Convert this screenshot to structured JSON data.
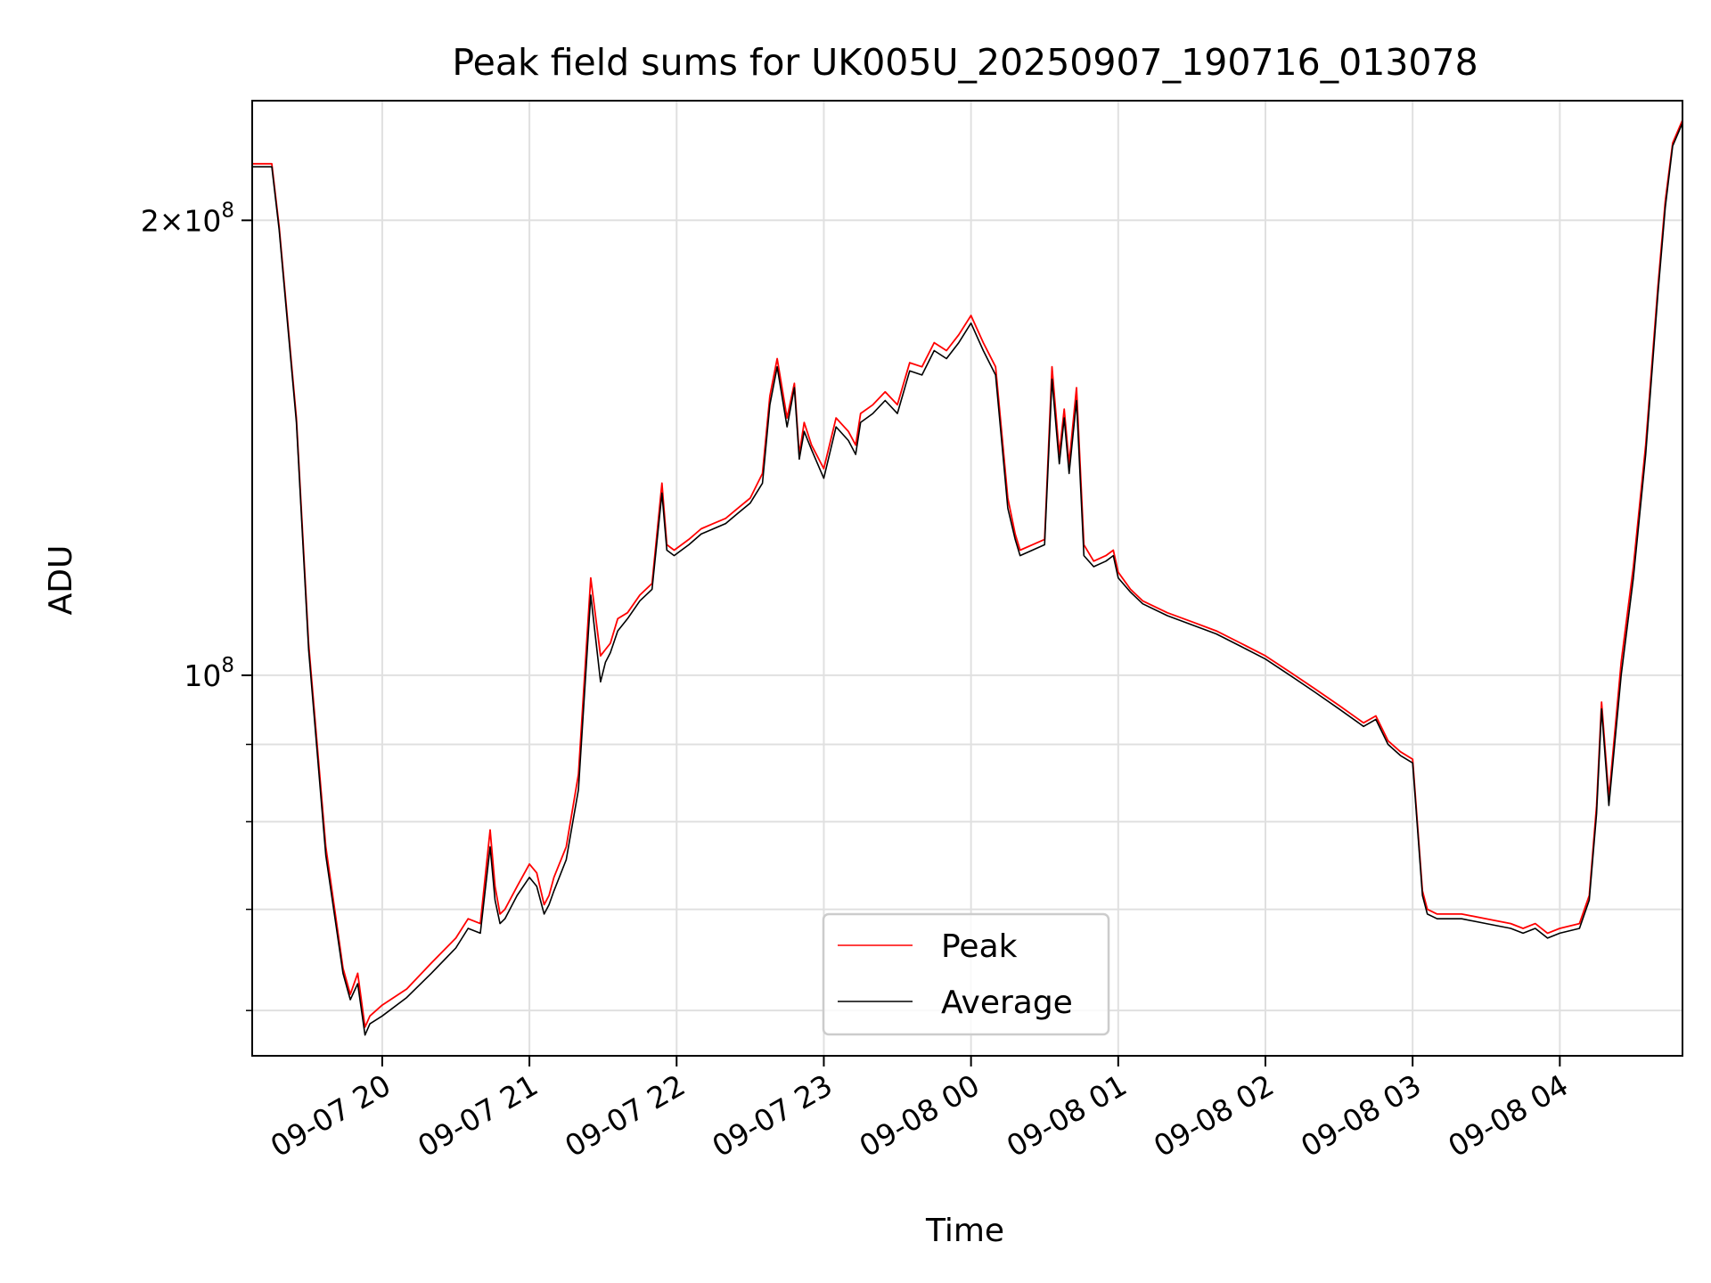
{
  "chart_data": {
    "type": "line",
    "title": "Peak field sums for UK005U_20250907_190716_013078",
    "xlabel": "Time",
    "ylabel": "ADU",
    "yscale": "log",
    "grid": true,
    "legend_position": "lower-center",
    "x_ticks": [
      "09-07 20",
      "09-07 21",
      "09-07 22",
      "09-07 23",
      "09-08 00",
      "09-08 01",
      "09-08 02",
      "09-08 03",
      "09-08 04"
    ],
    "y_ticks": [
      {
        "value": 100000000,
        "mantissa": "",
        "exp": "8"
      },
      {
        "value": 200000000,
        "mantissa": "2",
        "exp": "8"
      }
    ],
    "y_minor_ticks": [
      60000000,
      70000000,
      80000000,
      90000000
    ],
    "xlim": [
      "2025-09-07 19:07",
      "2025-09-08 04:50"
    ],
    "ylim": [
      56000000,
      240000000
    ],
    "series": [
      {
        "name": "Peak",
        "color": "#ff0000",
        "x": [
          "2025-09-07 19:07",
          "2025-09-07 19:15",
          "2025-09-07 19:18",
          "2025-09-07 19:25",
          "2025-09-07 19:30",
          "2025-09-07 19:37",
          "2025-09-07 19:44",
          "2025-09-07 19:47",
          "2025-09-07 19:50",
          "2025-09-07 19:53",
          "2025-09-07 19:55",
          "2025-09-07 20:00",
          "2025-09-07 20:10",
          "2025-09-07 20:20",
          "2025-09-07 20:30",
          "2025-09-07 20:35",
          "2025-09-07 20:40",
          "2025-09-07 20:44",
          "2025-09-07 20:46",
          "2025-09-07 20:48",
          "2025-09-07 20:50",
          "2025-09-07 20:55",
          "2025-09-07 21:00",
          "2025-09-07 21:03",
          "2025-09-07 21:06",
          "2025-09-07 21:08",
          "2025-09-07 21:10",
          "2025-09-07 21:15",
          "2025-09-07 21:20",
          "2025-09-07 21:25",
          "2025-09-07 21:29",
          "2025-09-07 21:31",
          "2025-09-07 21:33",
          "2025-09-07 21:36",
          "2025-09-07 21:40",
          "2025-09-07 21:45",
          "2025-09-07 21:50",
          "2025-09-07 21:54",
          "2025-09-07 21:56",
          "2025-09-07 21:59",
          "2025-09-07 22:05",
          "2025-09-07 22:10",
          "2025-09-07 22:15",
          "2025-09-07 22:20",
          "2025-09-07 22:25",
          "2025-09-07 22:30",
          "2025-09-07 22:35",
          "2025-09-07 22:38",
          "2025-09-07 22:41",
          "2025-09-07 22:45",
          "2025-09-07 22:48",
          "2025-09-07 22:50",
          "2025-09-07 22:52",
          "2025-09-07 22:55",
          "2025-09-07 23:00",
          "2025-09-07 23:05",
          "2025-09-07 23:10",
          "2025-09-07 23:13",
          "2025-09-07 23:15",
          "2025-09-07 23:20",
          "2025-09-07 23:25",
          "2025-09-07 23:30",
          "2025-09-07 23:35",
          "2025-09-07 23:40",
          "2025-09-07 23:45",
          "2025-09-07 23:50",
          "2025-09-07 23:55",
          "2025-09-08 00:00",
          "2025-09-08 00:05",
          "2025-09-08 00:10",
          "2025-09-08 00:13",
          "2025-09-08 00:15",
          "2025-09-08 00:18",
          "2025-09-08 00:20",
          "2025-09-08 00:25",
          "2025-09-08 00:30",
          "2025-09-08 00:33",
          "2025-09-08 00:36",
          "2025-09-08 00:38",
          "2025-09-08 00:40",
          "2025-09-08 00:43",
          "2025-09-08 00:46",
          "2025-09-08 00:50",
          "2025-09-08 00:55",
          "2025-09-08 00:58",
          "2025-09-08 01:00",
          "2025-09-08 01:05",
          "2025-09-08 01:10",
          "2025-09-08 01:20",
          "2025-09-08 01:30",
          "2025-09-08 01:40",
          "2025-09-08 01:50",
          "2025-09-08 02:00",
          "2025-09-08 02:10",
          "2025-09-08 02:20",
          "2025-09-08 02:30",
          "2025-09-08 02:40",
          "2025-09-08 02:45",
          "2025-09-08 02:50",
          "2025-09-08 02:55",
          "2025-09-08 03:00",
          "2025-09-08 03:04",
          "2025-09-08 03:06",
          "2025-09-08 03:10",
          "2025-09-08 03:20",
          "2025-09-08 03:30",
          "2025-09-08 03:40",
          "2025-09-08 03:45",
          "2025-09-08 03:50",
          "2025-09-08 03:55",
          "2025-09-08 04:00",
          "2025-09-08 04:08",
          "2025-09-08 04:12",
          "2025-09-08 04:15",
          "2025-09-08 04:17",
          "2025-09-08 04:20",
          "2025-09-08 04:25",
          "2025-09-08 04:30",
          "2025-09-08 04:35",
          "2025-09-08 04:40",
          "2025-09-08 04:43",
          "2025-09-08 04:46",
          "2025-09-08 04:50"
        ],
        "values": [
          218000000,
          218000000,
          198000000,
          148000000,
          105000000,
          77000000,
          64000000,
          61500000,
          63500000,
          58500000,
          59500000,
          60500000,
          62000000,
          64500000,
          67000000,
          69000000,
          68500000,
          79000000,
          72500000,
          69500000,
          70000000,
          72500000,
          75000000,
          74000000,
          70500000,
          71500000,
          73500000,
          77000000,
          86000000,
          116000000,
          103000000,
          104000000,
          105000000,
          109000000,
          110000000,
          113000000,
          115000000,
          134000000,
          122000000,
          121000000,
          123000000,
          125000000,
          126000000,
          127000000,
          129000000,
          131000000,
          136000000,
          153000000,
          162000000,
          148000000,
          156000000,
          140000000,
          147000000,
          142000000,
          137000000,
          148000000,
          145000000,
          142000000,
          149000000,
          151000000,
          154000000,
          151000000,
          161000000,
          160000000,
          166000000,
          164000000,
          168000000,
          173000000,
          166000000,
          160000000,
          142000000,
          131000000,
          124000000,
          121000000,
          122000000,
          123000000,
          160000000,
          140000000,
          150000000,
          138000000,
          155000000,
          122000000,
          119000000,
          120000000,
          121000000,
          117000000,
          114000000,
          112000000,
          110000000,
          108500000,
          107000000,
          105000000,
          103000000,
          100500000,
          98000000,
          95500000,
          93000000,
          94000000,
          90500000,
          89000000,
          88000000,
          72000000,
          70000000,
          69500000,
          69500000,
          69000000,
          68500000,
          68000000,
          68500000,
          67500000,
          68000000,
          68500000,
          71500000,
          82000000,
          96000000,
          83000000,
          102000000,
          118000000,
          142000000,
          181000000,
          206000000,
          225000000,
          233000000
        ]
      },
      {
        "name": "Average",
        "color": "#000000",
        "x": [
          "2025-09-07 19:07",
          "2025-09-07 19:15",
          "2025-09-07 19:18",
          "2025-09-07 19:25",
          "2025-09-07 19:30",
          "2025-09-07 19:37",
          "2025-09-07 19:44",
          "2025-09-07 19:47",
          "2025-09-07 19:50",
          "2025-09-07 19:53",
          "2025-09-07 19:55",
          "2025-09-07 20:00",
          "2025-09-07 20:10",
          "2025-09-07 20:20",
          "2025-09-07 20:30",
          "2025-09-07 20:35",
          "2025-09-07 20:40",
          "2025-09-07 20:44",
          "2025-09-07 20:46",
          "2025-09-07 20:48",
          "2025-09-07 20:50",
          "2025-09-07 20:55",
          "2025-09-07 21:00",
          "2025-09-07 21:03",
          "2025-09-07 21:06",
          "2025-09-07 21:08",
          "2025-09-07 21:10",
          "2025-09-07 21:15",
          "2025-09-07 21:20",
          "2025-09-07 21:25",
          "2025-09-07 21:29",
          "2025-09-07 21:31",
          "2025-09-07 21:33",
          "2025-09-07 21:36",
          "2025-09-07 21:40",
          "2025-09-07 21:45",
          "2025-09-07 21:50",
          "2025-09-07 21:54",
          "2025-09-07 21:56",
          "2025-09-07 21:59",
          "2025-09-07 22:05",
          "2025-09-07 22:10",
          "2025-09-07 22:15",
          "2025-09-07 22:20",
          "2025-09-07 22:25",
          "2025-09-07 22:30",
          "2025-09-07 22:35",
          "2025-09-07 22:38",
          "2025-09-07 22:41",
          "2025-09-07 22:45",
          "2025-09-07 22:48",
          "2025-09-07 22:50",
          "2025-09-07 22:52",
          "2025-09-07 22:55",
          "2025-09-07 23:00",
          "2025-09-07 23:05",
          "2025-09-07 23:10",
          "2025-09-07 23:13",
          "2025-09-07 23:15",
          "2025-09-07 23:20",
          "2025-09-07 23:25",
          "2025-09-07 23:30",
          "2025-09-07 23:35",
          "2025-09-07 23:40",
          "2025-09-07 23:45",
          "2025-09-07 23:50",
          "2025-09-07 23:55",
          "2025-09-08 00:00",
          "2025-09-08 00:05",
          "2025-09-08 00:10",
          "2025-09-08 00:13",
          "2025-09-08 00:15",
          "2025-09-08 00:18",
          "2025-09-08 00:20",
          "2025-09-08 00:25",
          "2025-09-08 00:30",
          "2025-09-08 00:33",
          "2025-09-08 00:36",
          "2025-09-08 00:38",
          "2025-09-08 00:40",
          "2025-09-08 00:43",
          "2025-09-08 00:46",
          "2025-09-08 00:50",
          "2025-09-08 00:55",
          "2025-09-08 00:58",
          "2025-09-08 01:00",
          "2025-09-08 01:05",
          "2025-09-08 01:10",
          "2025-09-08 01:20",
          "2025-09-08 01:30",
          "2025-09-08 01:40",
          "2025-09-08 01:50",
          "2025-09-08 02:00",
          "2025-09-08 02:10",
          "2025-09-08 02:20",
          "2025-09-08 02:30",
          "2025-09-08 02:40",
          "2025-09-08 02:45",
          "2025-09-08 02:50",
          "2025-09-08 02:55",
          "2025-09-08 03:00",
          "2025-09-08 03:04",
          "2025-09-08 03:06",
          "2025-09-08 03:10",
          "2025-09-08 03:20",
          "2025-09-08 03:30",
          "2025-09-08 03:40",
          "2025-09-08 03:45",
          "2025-09-08 03:50",
          "2025-09-08 03:55",
          "2025-09-08 04:00",
          "2025-09-08 04:08",
          "2025-09-08 04:12",
          "2025-09-08 04:15",
          "2025-09-08 04:17",
          "2025-09-08 04:20",
          "2025-09-08 04:25",
          "2025-09-08 04:30",
          "2025-09-08 04:35",
          "2025-09-08 04:40",
          "2025-09-08 04:43",
          "2025-09-08 04:46",
          "2025-09-08 04:50"
        ],
        "values": [
          217000000,
          217000000,
          197000000,
          147000000,
          104000000,
          76000000,
          63500000,
          61000000,
          62500000,
          57800000,
          58800000,
          59500000,
          61200000,
          63500000,
          66000000,
          68000000,
          67500000,
          77000000,
          71000000,
          68500000,
          69000000,
          71500000,
          73500000,
          72500000,
          69500000,
          70500000,
          72000000,
          75500000,
          84000000,
          113000000,
          99000000,
          102000000,
          103500000,
          107000000,
          109000000,
          112000000,
          114000000,
          132000000,
          121000000,
          120000000,
          122000000,
          124000000,
          125000000,
          126000000,
          128000000,
          130000000,
          134000000,
          151000000,
          160000000,
          146000000,
          155000000,
          139000000,
          145000000,
          141000000,
          135000000,
          146000000,
          143000000,
          140000000,
          147000000,
          149000000,
          152000000,
          149000000,
          159000000,
          158000000,
          164000000,
          162000000,
          166000000,
          171000000,
          164000000,
          158000000,
          140000000,
          129000000,
          123000000,
          120000000,
          121000000,
          122000000,
          157000000,
          138000000,
          148000000,
          136000000,
          152000000,
          120000000,
          118000000,
          119000000,
          120000000,
          116000000,
          113500000,
          111500000,
          109500000,
          108000000,
          106500000,
          104500000,
          102500000,
          100000000,
          97500000,
          95000000,
          92500000,
          93500000,
          90000000,
          88500000,
          87500000,
          71500000,
          69500000,
          69000000,
          69000000,
          68500000,
          68000000,
          67500000,
          68000000,
          67000000,
          67500000,
          68000000,
          71000000,
          81000000,
          95000000,
          82000000,
          100000000,
          116000000,
          140000000,
          179000000,
          204000000,
          224000000,
          232000000
        ]
      }
    ]
  }
}
